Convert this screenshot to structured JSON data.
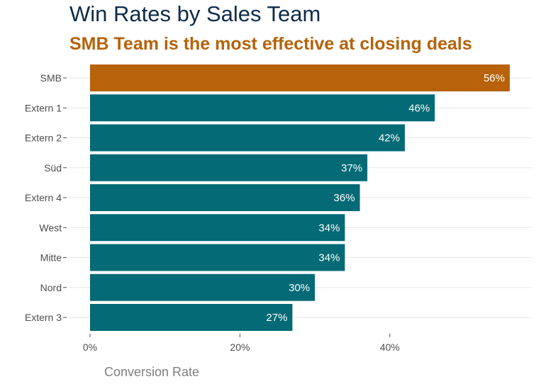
{
  "chart_data": {
    "type": "bar",
    "orientation": "horizontal",
    "title": "Win Rates by Sales Team",
    "subtitle": "SMB Team is the most effective at closing deals",
    "xlabel": "Conversion Rate",
    "ylabel": "",
    "categories": [
      "SMB",
      "Extern 1",
      "Extern 2",
      "Süd",
      "Extern 4",
      "West",
      "Mitte",
      "Nord",
      "Extern 3"
    ],
    "values": [
      56,
      46,
      42,
      37,
      36,
      34,
      34,
      30,
      27
    ],
    "value_labels": [
      "56%",
      "46%",
      "42%",
      "37%",
      "36%",
      "34%",
      "34%",
      "30%",
      "27%"
    ],
    "highlight_category": "SMB",
    "xlim": [
      0,
      56
    ],
    "x_ticks": [
      0,
      20,
      40
    ],
    "x_tick_labels": [
      "0%",
      "20%",
      "40%"
    ],
    "grid": "horizontal",
    "legend": "none"
  },
  "colors": {
    "highlight": "#b8620a",
    "bar": "#046a75",
    "title": "#0d2c4a",
    "subtitle": "#b5620a",
    "grid": "#e6e6e6",
    "axis_title": "#7f7f7f",
    "label": "#4d4d4d"
  }
}
